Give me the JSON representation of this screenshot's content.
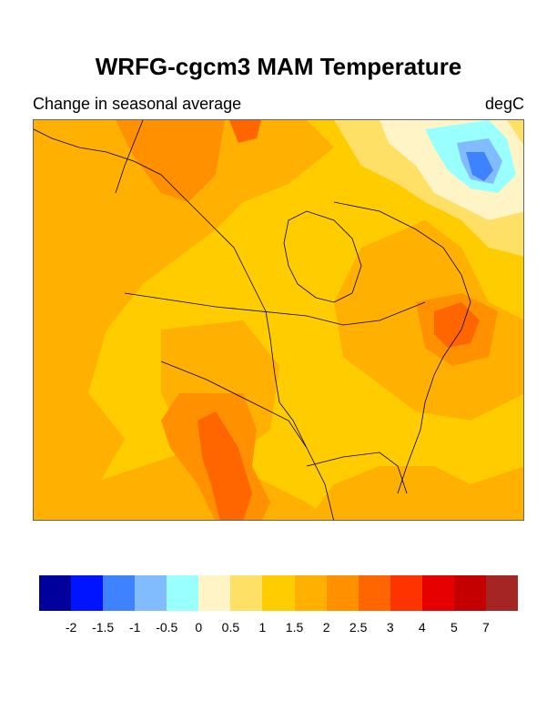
{
  "header": {
    "title": "WRFG-cgcm3 MAM Temperature",
    "subtitle_left": "Change in seasonal average",
    "units": "degC"
  },
  "colorbar": {
    "colors": [
      "#00009c",
      "#0014ff",
      "#3f82ff",
      "#80bcff",
      "#99ffff",
      "#fff4c6",
      "#ffe066",
      "#ffcc00",
      "#ffb000",
      "#ff9000",
      "#ff6600",
      "#ff3300",
      "#e60000",
      "#c40000",
      "#a52424"
    ],
    "labels": [
      "-2",
      "-1.5",
      "-1",
      "-0.5",
      "0",
      "0.5",
      "1",
      "1.5",
      "2",
      "2.5",
      "3",
      "4",
      "5",
      "7"
    ]
  },
  "map": {
    "region": "North America",
    "variable": "Temperature change",
    "season": "MAM",
    "background_color": "#ffcc00"
  }
}
